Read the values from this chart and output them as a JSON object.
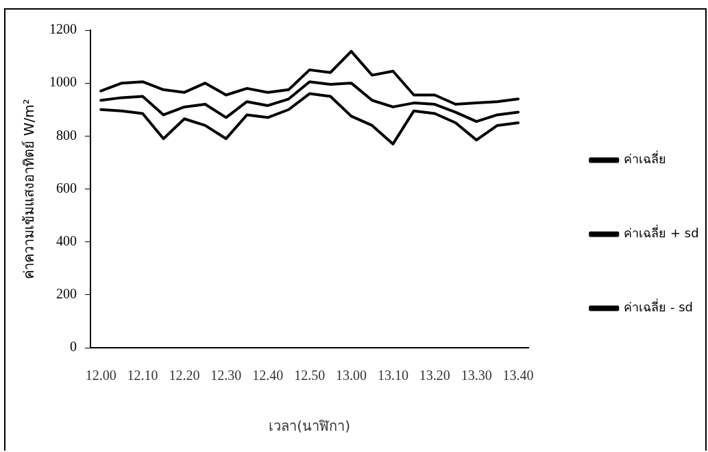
{
  "chart_data": {
    "type": "line",
    "xlabel": "เวลา(นาฬิกา)",
    "ylabel": "ค่าความเข้มแสงอาทิตย์ W/m²",
    "categories": [
      "12.00",
      null,
      "12.10",
      null,
      "12.20",
      null,
      "12.30",
      null,
      "12.40",
      null,
      "12.50",
      null,
      "13.00",
      null,
      "13.10",
      null,
      "13.20",
      null,
      "13.30",
      null,
      "13.40"
    ],
    "series": [
      {
        "name": "ค่าเฉลี่ย",
        "color": "#000000",
        "values": [
          935,
          945,
          950,
          880,
          910,
          920,
          870,
          930,
          915,
          940,
          1005,
          995,
          1000,
          935,
          910,
          925,
          920,
          890,
          855,
          880,
          890
        ]
      },
      {
        "name": "ค่าเฉลี่ย + sd",
        "color": "#000000",
        "values": [
          970,
          1000,
          1005,
          975,
          965,
          1000,
          955,
          980,
          965,
          975,
          1050,
          1040,
          1120,
          1030,
          1045,
          955,
          955,
          920,
          925,
          930,
          940
        ]
      },
      {
        "name": "ค่าเฉลี่ย - sd",
        "color": "#000000",
        "values": [
          900,
          895,
          885,
          790,
          865,
          840,
          790,
          880,
          870,
          900,
          960,
          950,
          875,
          840,
          770,
          895,
          885,
          850,
          785,
          840,
          850
        ]
      }
    ],
    "ylim": [
      0,
      1200
    ],
    "yticks": [
      0,
      200,
      400,
      600,
      800,
      1000,
      1200
    ],
    "grid": false,
    "legend": "right",
    "marker": "none",
    "line_style": "solid"
  }
}
